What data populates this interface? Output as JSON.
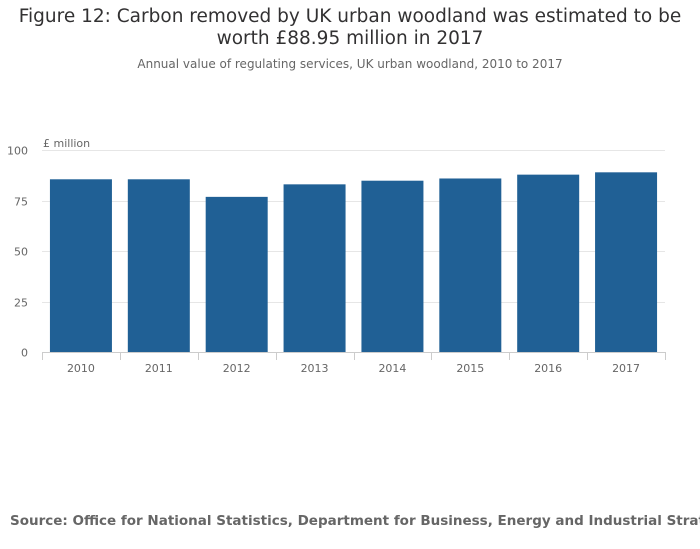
{
  "title": "Figure 12: Carbon removed by UK urban woodland was estimated to be worth £88.95 million in 2017",
  "subtitle": "Annual value of regulating services, UK urban woodland, 2010 to 2017",
  "source": "Source: Office for National Statistics, Department for Business, Energy and Industrial Strategy",
  "colors": {
    "bar": "#206095",
    "grid": "#e6e6e6",
    "axis": "#cccccc",
    "text": "#666666"
  },
  "chart_data": {
    "type": "bar",
    "categories": [
      "2010",
      "2011",
      "2012",
      "2013",
      "2014",
      "2015",
      "2016",
      "2017"
    ],
    "values": [
      85.5,
      85.5,
      76.8,
      83.0,
      84.8,
      85.9,
      87.8,
      88.95
    ],
    "title": "Figure 12: Carbon removed by UK urban woodland was estimated to be worth £88.95 million in 2017",
    "subtitle": "Annual value of regulating services, UK urban woodland, 2010 to 2017",
    "xlabel": "",
    "ylabel": "£ million",
    "ylim": [
      0,
      100
    ],
    "yticks": [
      0,
      25,
      50,
      75,
      100
    ],
    "grid": true
  }
}
